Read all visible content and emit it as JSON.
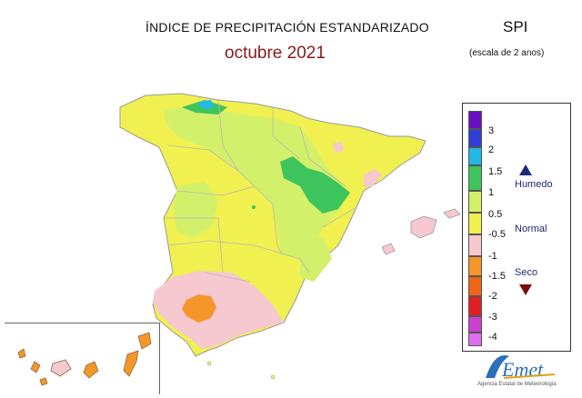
{
  "header": {
    "title": "ÍNDICE DE PRECIPITACIÓN ESTANDARIZADO",
    "subtitle": "octubre 2021",
    "index_name": "SPI",
    "scale": "(escala de 2 anos)"
  },
  "legend": {
    "ticks": [
      "3",
      "2",
      "1.5",
      "1",
      "0.5",
      "-0.5",
      "-1",
      "-1.5",
      "-2",
      "-3",
      "-4"
    ],
    "colors": [
      "#6a0fbf",
      "#2f3fd6",
      "#22b8e8",
      "#3ec45c",
      "#d3f06a",
      "#f0f050",
      "#f6c8d0",
      "#f4962a",
      "#f06418",
      "#e02020",
      "#cf3fd3",
      "#e06cf0"
    ],
    "labels": {
      "wet": "Humedo",
      "normal": "Normal",
      "dry": "Seco"
    }
  },
  "logo": {
    "name": "AEmet",
    "caption": "Agencia Estatal de Meteorología"
  }
}
